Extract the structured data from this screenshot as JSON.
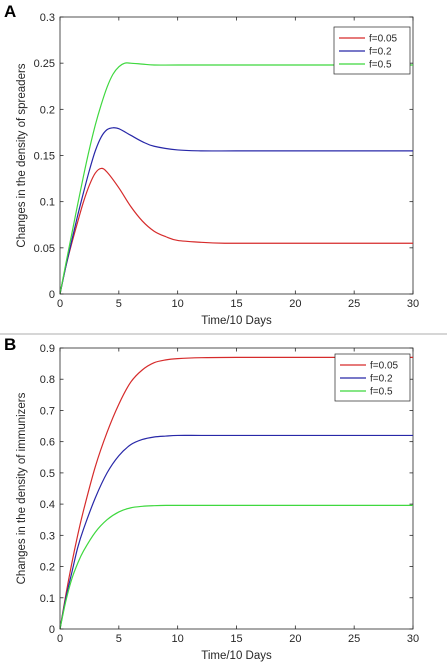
{
  "chart_data": [
    {
      "panel_label": "A",
      "type": "line",
      "xlabel": "Time/10 Days",
      "ylabel": "Changes in the density of spreaders",
      "xlim": [
        0,
        30
      ],
      "ylim": [
        0,
        0.3
      ],
      "xticks": [
        "0",
        "5",
        "10",
        "15",
        "20",
        "25",
        "30"
      ],
      "yticks": [
        "0",
        "0.05",
        "0.1",
        "0.15",
        "0.2",
        "0.25",
        "0.3"
      ],
      "grid": false,
      "legend_position": "top-right",
      "series": [
        {
          "name": "f=0.05",
          "color": "#d62b2b",
          "x": [
            0,
            0.5,
            1,
            1.5,
            2,
            2.5,
            3,
            3.5,
            4,
            5,
            6,
            7,
            8,
            9,
            10,
            12,
            14,
            16,
            20,
            25,
            30
          ],
          "y": [
            0,
            0.03,
            0.055,
            0.078,
            0.1,
            0.118,
            0.131,
            0.136,
            0.132,
            0.115,
            0.095,
            0.079,
            0.068,
            0.062,
            0.058,
            0.056,
            0.055,
            0.055,
            0.055,
            0.055,
            0.055
          ]
        },
        {
          "name": "f=0.2",
          "color": "#2828a8",
          "x": [
            0,
            0.5,
            1,
            1.5,
            2,
            2.5,
            3,
            3.5,
            4,
            4.5,
            5,
            6,
            7,
            8,
            10,
            12,
            15,
            20,
            25,
            30
          ],
          "y": [
            0,
            0.03,
            0.058,
            0.085,
            0.11,
            0.134,
            0.155,
            0.17,
            0.178,
            0.18,
            0.179,
            0.172,
            0.165,
            0.16,
            0.156,
            0.155,
            0.155,
            0.155,
            0.155,
            0.155
          ]
        },
        {
          "name": "f=0.5",
          "color": "#3fd83f",
          "x": [
            0,
            0.5,
            1,
            1.5,
            2,
            2.5,
            3,
            3.5,
            4,
            4.5,
            5,
            5.5,
            6,
            7,
            8,
            10,
            15,
            20,
            25,
            30
          ],
          "y": [
            0,
            0.033,
            0.065,
            0.097,
            0.128,
            0.157,
            0.183,
            0.205,
            0.224,
            0.238,
            0.246,
            0.25,
            0.25,
            0.249,
            0.248,
            0.248,
            0.248,
            0.248,
            0.248,
            0.248
          ]
        }
      ]
    },
    {
      "panel_label": "B",
      "type": "line",
      "xlabel": "Time/10 Days",
      "ylabel": "Changes in the density of immunizers",
      "xlim": [
        0,
        30
      ],
      "ylim": [
        0,
        0.9
      ],
      "xticks": [
        "0",
        "5",
        "10",
        "15",
        "20",
        "25",
        "30"
      ],
      "yticks": [
        "0",
        "0.1",
        "0.2",
        "0.3",
        "0.4",
        "0.5",
        "0.6",
        "0.7",
        "0.8",
        "0.9"
      ],
      "grid": false,
      "legend_position": "top-right",
      "series": [
        {
          "name": "f=0.05",
          "color": "#d62b2b",
          "x": [
            0,
            0.5,
            1,
            1.5,
            2,
            3,
            4,
            5,
            6,
            7,
            8,
            9,
            10,
            12,
            15,
            20,
            25,
            30
          ],
          "y": [
            0,
            0.11,
            0.21,
            0.3,
            0.38,
            0.52,
            0.63,
            0.72,
            0.79,
            0.83,
            0.853,
            0.862,
            0.866,
            0.869,
            0.87,
            0.87,
            0.87,
            0.87
          ]
        },
        {
          "name": "f=0.2",
          "color": "#2828a8",
          "x": [
            0,
            0.5,
            1,
            1.5,
            2,
            3,
            4,
            5,
            6,
            7,
            8,
            9,
            10,
            12,
            15,
            20,
            25,
            30
          ],
          "y": [
            0,
            0.1,
            0.18,
            0.26,
            0.32,
            0.42,
            0.5,
            0.555,
            0.59,
            0.607,
            0.615,
            0.618,
            0.62,
            0.62,
            0.62,
            0.62,
            0.62,
            0.62
          ]
        },
        {
          "name": "f=0.5",
          "color": "#3fd83f",
          "x": [
            0,
            0.5,
            1,
            1.5,
            2,
            3,
            4,
            5,
            6,
            7,
            8,
            9,
            10,
            12,
            15,
            20,
            25,
            30
          ],
          "y": [
            0,
            0.09,
            0.16,
            0.21,
            0.25,
            0.31,
            0.35,
            0.375,
            0.388,
            0.393,
            0.395,
            0.396,
            0.396,
            0.396,
            0.396,
            0.396,
            0.396,
            0.396
          ]
        }
      ]
    }
  ]
}
